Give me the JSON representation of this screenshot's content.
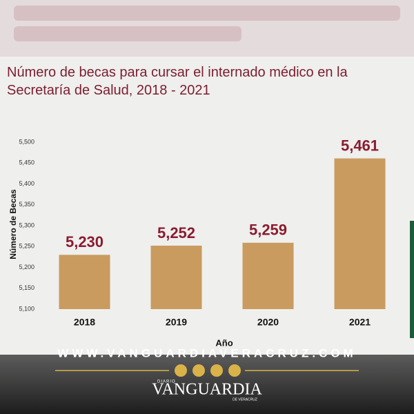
{
  "chart_data": {
    "type": "bar",
    "title": "Número de becas para cursar el internado médico en la Secretaría de Salud, 2018 - 2021",
    "y_label": "Número de Becas",
    "x_label": "Año",
    "categories": [
      "2018",
      "2019",
      "2020",
      "2021"
    ],
    "values": [
      5230,
      5252,
      5259,
      5461
    ],
    "value_labels": [
      "5,230",
      "5,252",
      "5,259",
      "5,461"
    ],
    "color": "#c99b5f",
    "label_color": "#8a1c30",
    "ylim": [
      5100,
      5500
    ],
    "yticks": [
      {
        "value": 5100,
        "label": "5,100"
      },
      {
        "value": 5150,
        "label": "5,150"
      },
      {
        "value": 5200,
        "label": "5,200"
      },
      {
        "value": 5250,
        "label": "5,250"
      },
      {
        "value": 5300,
        "label": "5,300"
      },
      {
        "value": 5350,
        "label": "5,350"
      },
      {
        "value": 5400,
        "label": "5,400"
      },
      {
        "value": 5450,
        "label": "5,450"
      },
      {
        "value": 5500,
        "label": "5,500"
      }
    ],
    "grid": false
  },
  "footer": {
    "website": "WWW.VANGUARDIAVERACRUZ.COM",
    "brand_top": "DIARIO",
    "brand": "VANGUARDIA",
    "brand_bottom": "DE VERACRUZ"
  }
}
